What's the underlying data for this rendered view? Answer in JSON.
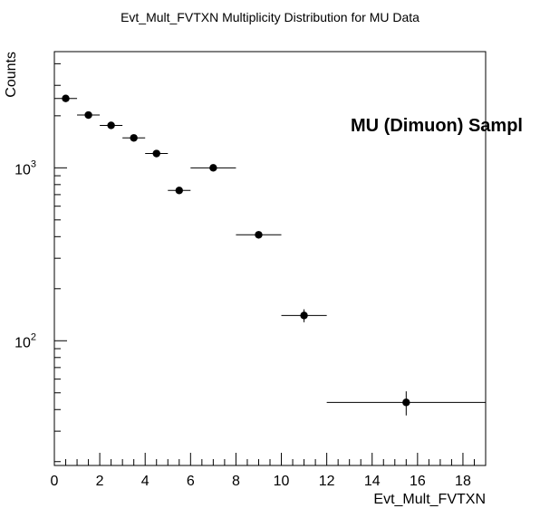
{
  "chart_data": {
    "type": "scatter",
    "title": "Evt_Mult_FVTXN Multiplicity Distribution for MU Data",
    "xlabel": "Evt_Mult_FVTXN",
    "ylabel": "Counts",
    "xlim": [
      0,
      19
    ],
    "ylim": [
      19,
      4700
    ],
    "log_y": true,
    "grid": false,
    "x_tick_labels": [
      "0",
      "2",
      "4",
      "6",
      "8",
      "10",
      "12",
      "14",
      "16",
      "18"
    ],
    "y_tick_labels": [
      "10^2",
      "10^3"
    ],
    "annotation": "MU (Dimuon) Sampl",
    "points": [
      {
        "x": 0.5,
        "xlow": 0,
        "xhigh": 1,
        "y": 2520,
        "yerr": 50
      },
      {
        "x": 1.5,
        "xlow": 1,
        "xhigh": 2,
        "y": 2020,
        "yerr": 45
      },
      {
        "x": 2.5,
        "xlow": 2,
        "xhigh": 3,
        "y": 1760,
        "yerr": 42
      },
      {
        "x": 3.5,
        "xlow": 3,
        "xhigh": 4,
        "y": 1490,
        "yerr": 39
      },
      {
        "x": 4.5,
        "xlow": 4,
        "xhigh": 5,
        "y": 1210,
        "yerr": 35
      },
      {
        "x": 5.5,
        "xlow": 5,
        "xhigh": 6,
        "y": 740,
        "yerr": 27
      },
      {
        "x": 7,
        "xlow": 6,
        "xhigh": 8,
        "y": 1000,
        "yerr": 32
      },
      {
        "x": 9,
        "xlow": 8,
        "xhigh": 10,
        "y": 410,
        "yerr": 20
      },
      {
        "x": 11,
        "xlow": 10,
        "xhigh": 12,
        "y": 140,
        "yerr": 12
      },
      {
        "x": 15.5,
        "xlow": 12,
        "xhigh": 19,
        "y": 44,
        "yerr": 7
      }
    ]
  }
}
